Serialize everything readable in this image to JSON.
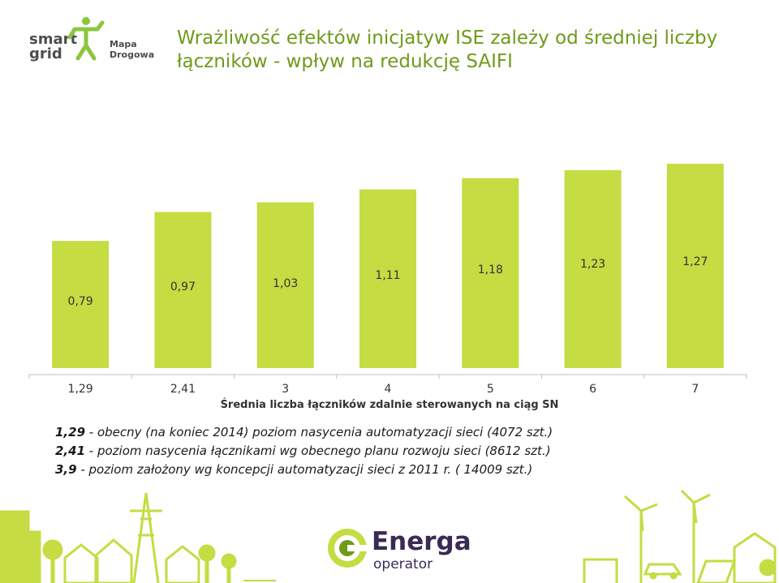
{
  "header": {
    "title_line1": "Wrażliwość efektów inicjatyw ISE zależy od średniej liczby",
    "title_line2": "łączników - wpływ na redukcję SAIFI",
    "logo_smart": "smart",
    "logo_grid": "grid",
    "logo_mapa": "Mapa Drogowa"
  },
  "chart_data": {
    "type": "bar",
    "categories": [
      "1,29",
      "2,41",
      "3",
      "4",
      "5",
      "6",
      "7"
    ],
    "values": [
      0.79,
      0.97,
      1.03,
      1.11,
      1.18,
      1.23,
      1.27
    ],
    "value_labels": [
      "0,79",
      "0,97",
      "1,03",
      "1,11",
      "1,18",
      "1,23",
      "1,27"
    ],
    "xlabel": "Średnia liczba łączników zdalnie sterowanych na ciąg SN",
    "ylabel": "",
    "ylim": [
      0,
      1.35
    ],
    "grid": false,
    "bar_color": "#c5dc42"
  },
  "notes": [
    {
      "value": "1,29",
      "text": " - obecny (na koniec 2014) poziom nasycenia automatyzacji sieci (4072 szt.)"
    },
    {
      "value": "2,41",
      "text": " - poziom nasycenia łącznikami wg obecnego planu rozwoju sieci (8612 szt.)"
    },
    {
      "value": "3,9",
      "text": " - poziom założony wg koncepcji automatyzacji sieci  z 2011 r.  ( 14009 szt.)"
    }
  ],
  "footer": {
    "brand": "Energa",
    "brand_sub": "operator"
  }
}
